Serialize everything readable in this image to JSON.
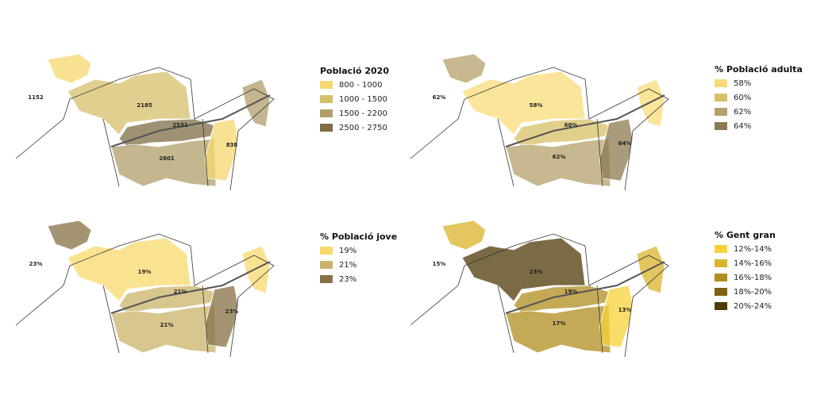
{
  "maps": [
    {
      "legend": {
        "title": "Població 2020",
        "items": [
          {
            "label": "800 - 1000",
            "color": "#f5d76e"
          },
          {
            "label": "1000 - 1500",
            "color": "#d6bf6a"
          },
          {
            "label": "1500 - 2200",
            "color": "#b09e6a"
          },
          {
            "label": "2500 - 2750",
            "color": "#7f6e45"
          }
        ]
      },
      "labels": [
        "1152",
        "2185",
        "2531",
        "838",
        "2601"
      ]
    },
    {
      "legend": {
        "title": "% Població adulta",
        "items": [
          {
            "label": "58%",
            "color": "#f9dc7a"
          },
          {
            "label": "60%",
            "color": "#d7c065"
          },
          {
            "label": "62%",
            "color": "#b4a06a"
          },
          {
            "label": "64%",
            "color": "#8c7a50"
          }
        ]
      },
      "labels": [
        "62%",
        "58%",
        "60%",
        "64%",
        "62%"
      ]
    },
    {
      "legend": {
        "title": "% Població jove",
        "items": [
          {
            "label": "19%",
            "color": "#f7d96c"
          },
          {
            "label": "21%",
            "color": "#cbb36a"
          },
          {
            "label": "23%",
            "color": "#857044"
          }
        ]
      },
      "labels": [
        "23%",
        "19%",
        "21%",
        "23%",
        "21%"
      ]
    },
    {
      "legend": {
        "title": "% Gent gran",
        "items": [
          {
            "label": "12%-14%",
            "color": "#f5d23a"
          },
          {
            "label": "14%-16%",
            "color": "#d9b32a"
          },
          {
            "label": "16%-18%",
            "color": "#b08e1f"
          },
          {
            "label": "18%-20%",
            "color": "#7d6210"
          },
          {
            "label": "20%-24%",
            "color": "#4e3a05"
          }
        ]
      },
      "labels": [
        "15%",
        "23%",
        "19%",
        "13%",
        "17%"
      ]
    }
  ]
}
